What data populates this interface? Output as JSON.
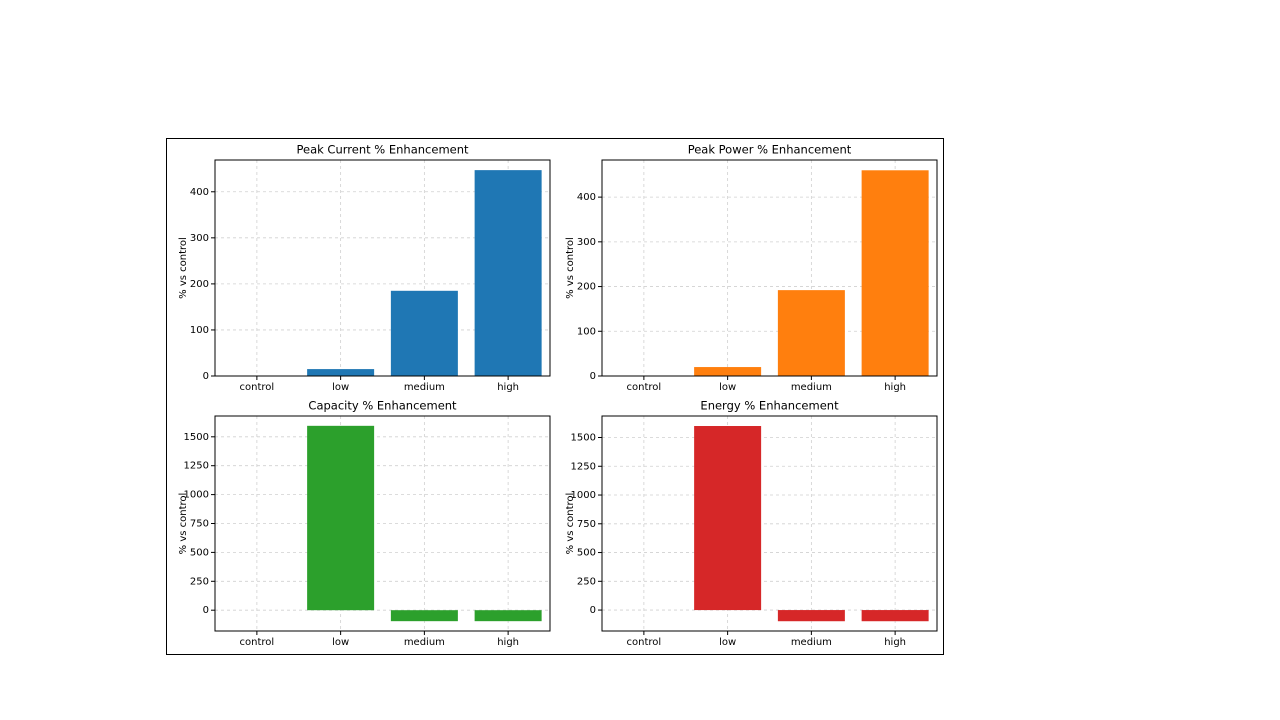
{
  "chart_data": [
    {
      "type": "bar",
      "title": "Peak Current % Enhancement",
      "ylabel": "% vs control",
      "categories": [
        "control",
        "low",
        "medium",
        "high"
      ],
      "values": [
        0,
        15,
        185,
        447
      ],
      "color": "#1f77b4",
      "ylim": [
        0,
        469
      ],
      "yticks": [
        0,
        100,
        200,
        300,
        400
      ],
      "grid": true
    },
    {
      "type": "bar",
      "title": "Peak Power % Enhancement",
      "ylabel": "% vs control",
      "categories": [
        "control",
        "low",
        "medium",
        "high"
      ],
      "values": [
        0,
        20,
        192,
        460
      ],
      "color": "#ff7f0e",
      "ylim": [
        0,
        483
      ],
      "yticks": [
        0,
        100,
        200,
        300,
        400
      ],
      "grid": true
    },
    {
      "type": "bar",
      "title": "Capacity % Enhancement",
      "ylabel": "% vs control",
      "categories": [
        "control",
        "low",
        "medium",
        "high"
      ],
      "values": [
        0,
        1595,
        -95,
        -95
      ],
      "color": "#2ca02c",
      "ylim": [
        -180,
        1680
      ],
      "yticks": [
        0,
        250,
        500,
        750,
        1000,
        1250,
        1500
      ],
      "grid": true
    },
    {
      "type": "bar",
      "title": "Energy % Enhancement",
      "ylabel": "% vs control",
      "categories": [
        "control",
        "low",
        "medium",
        "high"
      ],
      "values": [
        0,
        1600,
        -97,
        -97
      ],
      "color": "#d62728",
      "ylim": [
        -182,
        1687
      ],
      "yticks": [
        0,
        250,
        500,
        750,
        1000,
        1250,
        1500
      ],
      "grid": true
    }
  ]
}
